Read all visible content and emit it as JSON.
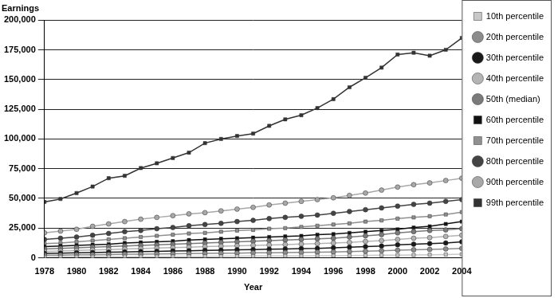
{
  "chart_data": {
    "type": "line",
    "title": "Earnings",
    "x_label": "Year",
    "x": [
      1978,
      1979,
      1980,
      1981,
      1982,
      1983,
      1984,
      1985,
      1986,
      1987,
      1988,
      1989,
      1990,
      1991,
      1992,
      1993,
      1994,
      1995,
      1996,
      1997,
      1998,
      1999,
      2000,
      2001,
      2002,
      2003,
      2004
    ],
    "xlim": [
      1978,
      2004
    ],
    "xticks": [
      1978,
      1980,
      1982,
      1984,
      1986,
      1988,
      1990,
      1992,
      1994,
      1996,
      1998,
      2000,
      2002,
      2004
    ],
    "ylim": [
      0,
      200000
    ],
    "yticks": [
      0,
      {
        "value": 25000,
        "label": "25,000"
      },
      {
        "value": 50000,
        "label": "50,000"
      },
      {
        "value": 75000,
        "label": "75,000"
      },
      {
        "value": 100000,
        "label": "100,000"
      },
      {
        "value": 125000,
        "label": "125,000"
      },
      {
        "value": 150000,
        "label": "150,000"
      },
      {
        "value": 175000,
        "label": "175,000"
      },
      {
        "value": 200000,
        "label": "200,000"
      }
    ],
    "grid": true,
    "legend": "right",
    "series": [
      {
        "name": "10th percentile",
        "color": "#c8c8c8",
        "marker": "square",
        "values": [
          800,
          850,
          900,
          950,
          1000,
          1100,
          1100,
          1150,
          1200,
          1300,
          1300,
          1350,
          1400,
          1500,
          1500,
          1600,
          1600,
          1700,
          1800,
          1900,
          2000,
          2200,
          2300,
          2400,
          2600,
          2800,
          3000
        ]
      },
      {
        "name": "20th percentile",
        "color": "#8c8c8c",
        "marker": "circle",
        "values": [
          2200,
          2300,
          2500,
          2600,
          2800,
          3000,
          3100,
          3300,
          3400,
          3600,
          3700,
          3900,
          4000,
          4200,
          4300,
          4500,
          4600,
          4800,
          5000,
          5300,
          5600,
          6000,
          6400,
          6800,
          7100,
          7500,
          8000
        ]
      },
      {
        "name": "30th percentile",
        "color": "#1a1a1a",
        "marker": "circle",
        "values": [
          3800,
          4000,
          4300,
          4500,
          4800,
          5000,
          5300,
          5500,
          5800,
          6000,
          6300,
          6500,
          6800,
          7000,
          7200,
          7500,
          7800,
          8000,
          8500,
          9000,
          9500,
          10000,
          11000,
          11500,
          12000,
          12500,
          13500
        ]
      },
      {
        "name": "40th percentile",
        "color": "#b4b4b4",
        "marker": "circle",
        "values": [
          5500,
          5800,
          6200,
          6600,
          7000,
          7400,
          7800,
          8200,
          8600,
          9000,
          9400,
          9800,
          10200,
          10500,
          10800,
          11200,
          11600,
          12000,
          12500,
          13000,
          13800,
          14500,
          15500,
          16500,
          17000,
          18000,
          19000
        ]
      },
      {
        "name": "50th (median)",
        "color": "#7a7a7a",
        "marker": "circle",
        "values": [
          7500,
          8000,
          8500,
          9000,
          9500,
          10000,
          10500,
          11000,
          11500,
          12000,
          12500,
          13000,
          13500,
          14000,
          14500,
          15000,
          15500,
          16000,
          16500,
          17500,
          18500,
          19500,
          21000,
          22000,
          23000,
          23500,
          24500
        ]
      },
      {
        "name": "60th percentile",
        "color": "#111111",
        "marker": "square",
        "values": [
          9500,
          10000,
          10500,
          11000,
          11500,
          12500,
          13000,
          13500,
          14000,
          15000,
          15500,
          16000,
          16500,
          17000,
          17500,
          18000,
          18500,
          19500,
          20000,
          21000,
          22000,
          23000,
          24000,
          25500,
          26500,
          28500,
          30500
        ]
      },
      {
        "name": "70th percentile",
        "color": "#909090",
        "marker": "square",
        "values": [
          12000,
          12500,
          13500,
          14500,
          15500,
          16500,
          17500,
          18500,
          19500,
          20500,
          21000,
          22000,
          23000,
          23500,
          24500,
          25000,
          26000,
          27000,
          28000,
          29000,
          30500,
          31500,
          33000,
          34000,
          35000,
          36500,
          38500
        ]
      },
      {
        "name": "80th percentile",
        "color": "#444444",
        "marker": "circle",
        "values": [
          15500,
          16500,
          17500,
          19000,
          20500,
          22000,
          23000,
          24500,
          25500,
          27000,
          28000,
          29000,
          30500,
          31500,
          33000,
          34000,
          35000,
          36000,
          37500,
          39000,
          40500,
          42000,
          43500,
          45000,
          46000,
          47500,
          49000
        ]
      },
      {
        "name": "90th percentile",
        "color": "#a8a8a8",
        "marker": "circle",
        "values": [
          21000,
          22500,
          24000,
          26500,
          28500,
          30500,
          32500,
          34000,
          35500,
          37000,
          38000,
          39500,
          41000,
          42500,
          44500,
          46000,
          47500,
          49000,
          50500,
          52500,
          54500,
          57000,
          59500,
          61500,
          63000,
          65000,
          67000
        ]
      },
      {
        "name": "99th percentile",
        "color": "#333333",
        "marker": "square",
        "values": [
          47000,
          49500,
          54500,
          60000,
          67000,
          69000,
          75500,
          79500,
          84000,
          88500,
          96500,
          100000,
          102500,
          104500,
          111000,
          116500,
          120000,
          126000,
          133500,
          143500,
          151500,
          160000,
          171000,
          172500,
          170000,
          175000,
          185000
        ]
      }
    ]
  }
}
